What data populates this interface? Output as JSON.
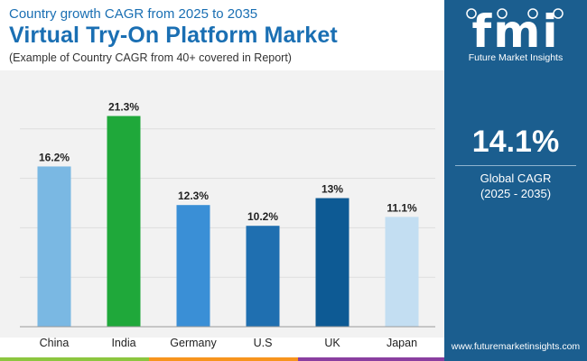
{
  "header": {
    "subtitle": "Country growth CAGR from 2025 to 2035",
    "title": "Virtual Try-On Platform Market",
    "note": "(Example of Country CAGR from 40+ covered in Report)"
  },
  "chart_data": {
    "type": "bar",
    "categories": [
      "China",
      "India",
      "Germany",
      "U.S",
      "UK",
      "Japan"
    ],
    "values": [
      16.2,
      21.3,
      12.3,
      10.2,
      13,
      11.1
    ],
    "value_labels": [
      "16.2%",
      "21.3%",
      "12.3%",
      "10.2%",
      "13%",
      "11.1%"
    ],
    "colors": [
      "#7ab8e3",
      "#1fa83a",
      "#3a8fd6",
      "#1f6fb0",
      "#0d5a94",
      "#c3def2"
    ],
    "ylim": [
      0,
      25
    ],
    "grid": true,
    "title": "Virtual Try-On Platform Market",
    "xlabel": "",
    "ylabel": ""
  },
  "sidebar": {
    "logo": "fmi",
    "logo_subtitle": "Future Market Insights",
    "global_cagr_value": "14.1%",
    "global_cagr_label": "Global CAGR",
    "global_cagr_period": "(2025 - 2035)",
    "website": "www.futuremarketinsights.com"
  },
  "colors": {
    "title_blue": "#1a6fb3",
    "sidebar_bg": "#1b5e8f",
    "plot_bg": "#f2f2f2",
    "bottom_bar": [
      "#8cc63f",
      "#f7941d",
      "#8a3ea0",
      "#1b5e8f"
    ]
  }
}
